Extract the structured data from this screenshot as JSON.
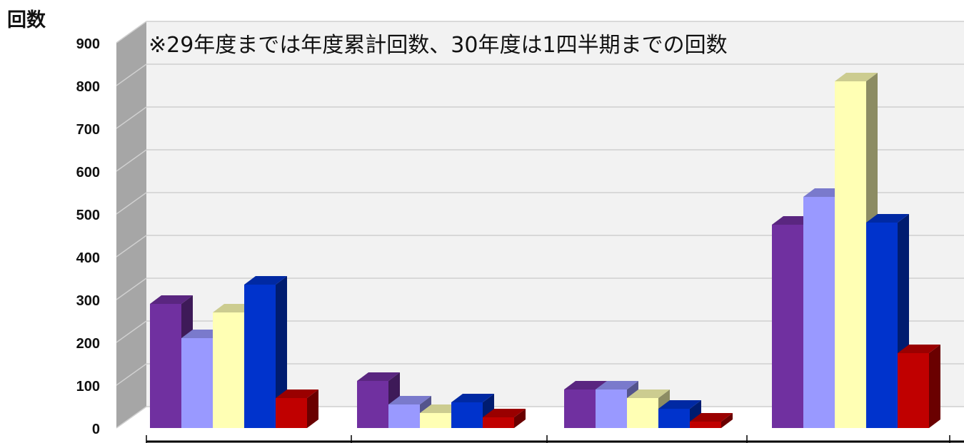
{
  "chart_data": {
    "type": "bar",
    "title": "",
    "ylabel": "回数",
    "xlabel": "",
    "annotation": "※29年度までは年度累計回数、30年度は1四半期までの回数",
    "ylim": [
      0,
      900
    ],
    "yticks": [
      0,
      100,
      200,
      300,
      400,
      500,
      600,
      700,
      800,
      900
    ],
    "grid": true,
    "legend": "none",
    "categories": [
      "",
      "",
      "",
      ""
    ],
    "series": [
      {
        "color": "#7030a0",
        "values": [
          290,
          110,
          90,
          475
        ]
      },
      {
        "color": "#9999ff",
        "values": [
          210,
          55,
          90,
          540
        ]
      },
      {
        "color": "#ffffb4",
        "values": [
          270,
          35,
          70,
          810
        ]
      },
      {
        "color": "#0033cc",
        "values": [
          335,
          60,
          45,
          480
        ]
      },
      {
        "color": "#c00000",
        "values": [
          70,
          25,
          15,
          175
        ]
      }
    ]
  }
}
